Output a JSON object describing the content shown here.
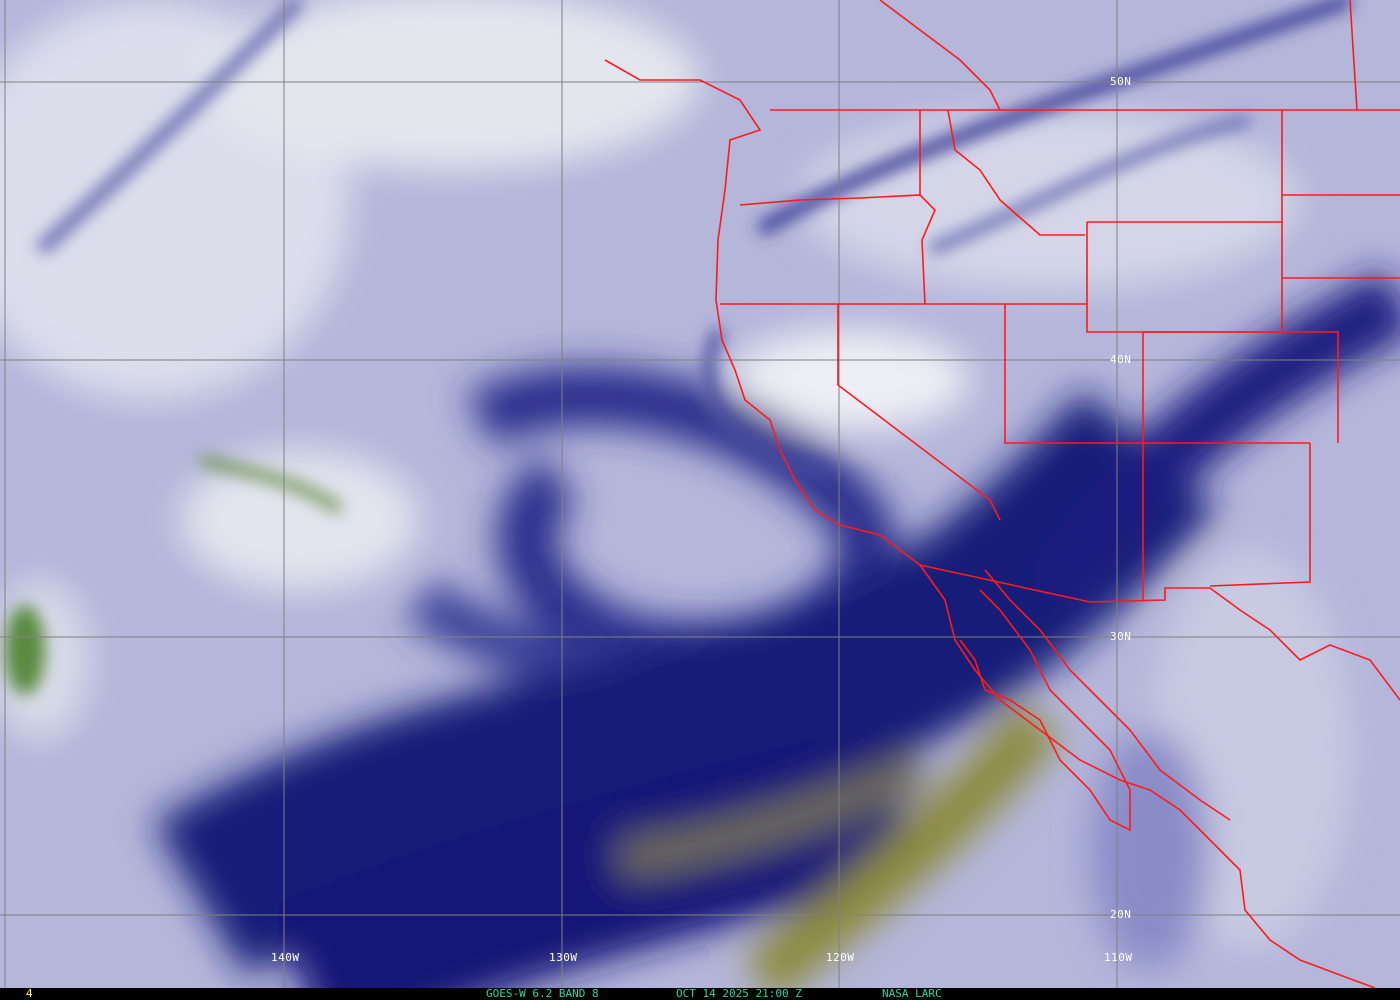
{
  "map": {
    "longitude_labels": [
      "140W",
      "130W",
      "120W",
      "110W"
    ],
    "latitude_labels": [
      "50N",
      "40N",
      "30N",
      "20N"
    ],
    "colors": {
      "border": "#ff1a1a",
      "grid": "#808080",
      "moist": "#1a1f80",
      "dry": "#e6e8f0",
      "very_dry": "#8c8a3a",
      "caption": "#2ad4a8"
    }
  },
  "caption": {
    "frame": "4",
    "product": "GOES-W 6.2 BAND 8",
    "datetime": "OCT 14 2025 21:00 Z",
    "source": "NASA LARC"
  }
}
